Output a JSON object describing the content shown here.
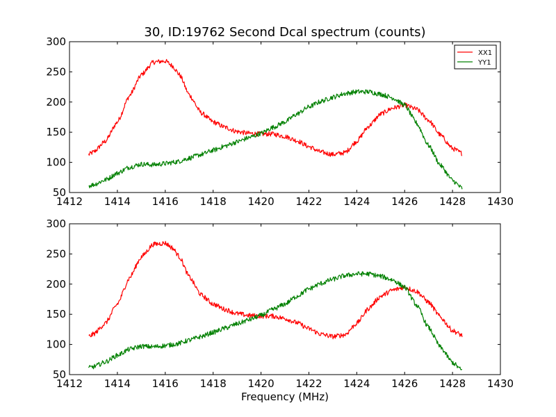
{
  "chart_data": [
    {
      "type": "line",
      "title": "30, ID:19762 Second Dcal spectrum (counts)",
      "xlabel": "",
      "ylabel": "",
      "xlim": [
        1412,
        1430
      ],
      "ylim": [
        50,
        300
      ],
      "xticks": [
        1412,
        1414,
        1416,
        1418,
        1420,
        1422,
        1424,
        1426,
        1428,
        1430
      ],
      "yticks": [
        50,
        100,
        150,
        200,
        250,
        300
      ],
      "legend": {
        "placement": "top-right",
        "entries": [
          "XX1",
          "YY1"
        ]
      },
      "grid": false,
      "series": [
        {
          "name": "XX1",
          "color": "#ff0000",
          "x": [
            1412.8,
            1413.0,
            1413.5,
            1414.0,
            1414.5,
            1415.0,
            1415.5,
            1416.0,
            1416.3,
            1416.6,
            1417.0,
            1417.5,
            1418.0,
            1418.5,
            1419.0,
            1419.5,
            1420.0,
            1420.5,
            1421.0,
            1421.5,
            1422.0,
            1422.5,
            1423.0,
            1423.5,
            1424.0,
            1424.5,
            1425.0,
            1425.5,
            1426.0,
            1426.5,
            1427.0,
            1427.5,
            1428.0,
            1428.4
          ],
          "y": [
            113,
            117,
            135,
            167,
            210,
            245,
            266,
            268,
            260,
            245,
            212,
            182,
            167,
            158,
            151,
            148,
            147,
            147,
            143,
            136,
            126,
            117,
            113,
            116,
            135,
            160,
            180,
            190,
            195,
            188,
            170,
            145,
            123,
            115
          ]
        },
        {
          "name": "YY1",
          "color": "#008000",
          "x": [
            1412.8,
            1413.0,
            1413.5,
            1414.0,
            1414.5,
            1415.0,
            1415.5,
            1416.0,
            1416.5,
            1417.0,
            1417.5,
            1418.0,
            1418.5,
            1419.0,
            1419.5,
            1420.0,
            1420.5,
            1421.0,
            1421.5,
            1422.0,
            1422.5,
            1423.0,
            1423.5,
            1424.0,
            1424.5,
            1425.0,
            1425.5,
            1426.0,
            1426.5,
            1427.0,
            1427.5,
            1428.0,
            1428.4
          ],
          "y": [
            61,
            63,
            71,
            82,
            92,
            97,
            96,
            98,
            101,
            107,
            113,
            120,
            127,
            134,
            141,
            148,
            158,
            167,
            180,
            192,
            201,
            208,
            214,
            217,
            217,
            213,
            207,
            195,
            165,
            128,
            95,
            70,
            57
          ]
        }
      ]
    },
    {
      "type": "line",
      "title": "",
      "xlabel": "Frequency (MHz)",
      "ylabel": "",
      "xlim": [
        1412,
        1430
      ],
      "ylim": [
        50,
        300
      ],
      "xticks": [
        1412,
        1414,
        1416,
        1418,
        1420,
        1422,
        1424,
        1426,
        1428,
        1430
      ],
      "yticks": [
        50,
        100,
        150,
        200,
        250,
        300
      ],
      "grid": false,
      "series": [
        {
          "color": "#ff0000",
          "x": [
            1412.8,
            1413.0,
            1413.5,
            1414.0,
            1414.5,
            1415.0,
            1415.5,
            1416.0,
            1416.3,
            1416.6,
            1417.0,
            1417.5,
            1418.0,
            1418.5,
            1419.0,
            1419.5,
            1420.0,
            1420.5,
            1421.0,
            1421.5,
            1422.0,
            1422.5,
            1423.0,
            1423.5,
            1424.0,
            1424.5,
            1425.0,
            1425.5,
            1426.0,
            1426.5,
            1427.0,
            1427.5,
            1428.0,
            1428.4
          ],
          "y": [
            113,
            117,
            135,
            167,
            210,
            245,
            266,
            268,
            260,
            245,
            212,
            182,
            167,
            158,
            151,
            148,
            147,
            147,
            143,
            136,
            126,
            117,
            113,
            116,
            135,
            160,
            180,
            190,
            195,
            188,
            170,
            145,
            123,
            115
          ]
        },
        {
          "color": "#008000",
          "x": [
            1412.8,
            1413.0,
            1413.5,
            1414.0,
            1414.5,
            1415.0,
            1415.5,
            1416.0,
            1416.5,
            1417.0,
            1417.5,
            1418.0,
            1418.5,
            1419.0,
            1419.5,
            1420.0,
            1420.5,
            1421.0,
            1421.5,
            1422.0,
            1422.5,
            1423.0,
            1423.5,
            1424.0,
            1424.5,
            1425.0,
            1425.5,
            1426.0,
            1426.5,
            1427.0,
            1427.5,
            1428.0,
            1428.4
          ],
          "y": [
            61,
            63,
            71,
            82,
            92,
            97,
            96,
            98,
            101,
            107,
            113,
            120,
            127,
            134,
            141,
            148,
            158,
            167,
            180,
            192,
            201,
            208,
            214,
            217,
            217,
            213,
            207,
            195,
            165,
            128,
            95,
            70,
            57
          ]
        }
      ]
    }
  ]
}
